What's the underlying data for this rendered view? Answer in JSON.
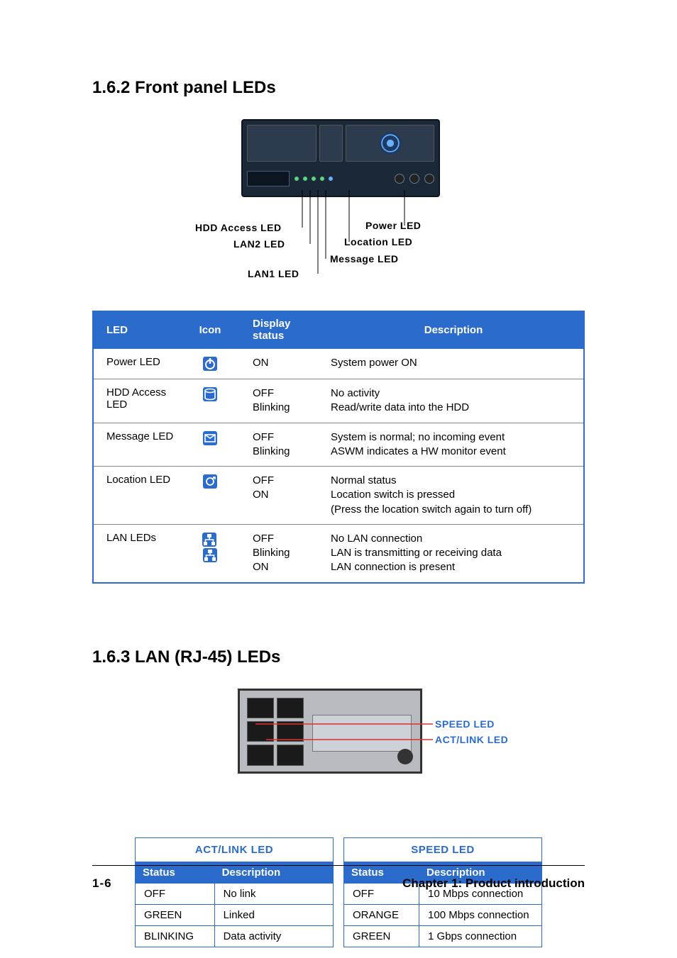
{
  "section1": {
    "heading": "1.6.2   Front panel LEDs",
    "labels": {
      "hdd": "HDD Access LED",
      "lan2": "LAN2 LED",
      "lan1": "LAN1 LED",
      "power": "Power LED",
      "location": "Location LED",
      "message": "Message LED"
    },
    "label_fontsize": 14,
    "label_color": "#000000",
    "device_bg": "#1a2838",
    "device_accent": "#6bb0ff",
    "dot_green": "#5ad67d"
  },
  "led_table": {
    "header_bg": "#2a6bcc",
    "header_fg": "#ffffff",
    "border_color": "#2a6bcc",
    "row_border": "#888888",
    "columns": [
      "LED",
      "Icon",
      "Display status",
      "Description"
    ],
    "rows": [
      {
        "led": "Power LED",
        "icon": "power-icon",
        "status": "ON",
        "desc": "System power ON"
      },
      {
        "led": "HDD Access LED",
        "icon": "hdd-icon",
        "status": "OFF\nBlinking",
        "desc": "No activity\nRead/write data into the HDD"
      },
      {
        "led": "Message LED",
        "icon": "message-icon",
        "status": "OFF\nBlinking",
        "desc": "System is normal; no incoming event\nASWM indicates a HW monitor event"
      },
      {
        "led": "Location LED",
        "icon": "location-icon",
        "status": "OFF\nON",
        "desc": "Normal status\nLocation switch is pressed\n(Press the location switch again to turn off)"
      },
      {
        "led": "LAN LEDs",
        "icon": "lan-icon",
        "status": "OFF\nBlinking\nON",
        "desc": "No LAN connection\nLAN is transmitting or receiving data\nLAN connection is present"
      }
    ]
  },
  "section2": {
    "heading": "1.6.3   LAN (RJ-45) LEDs",
    "labels": {
      "speed": "SPEED LED",
      "actlink": "ACT/LINK LED"
    },
    "label_color": "#2a6bcc",
    "line_color": "#e03030",
    "img_bg": "#b8bcc0"
  },
  "lan_table": {
    "header_bg": "#2a6bcc",
    "header_fg": "#ffffff",
    "border_color": "#2a6bcc",
    "group_left": "ACT/LINK LED",
    "group_right": "SPEED LED",
    "sub_cols": [
      "Status",
      "Description"
    ],
    "left_rows": [
      [
        "OFF",
        "No link"
      ],
      [
        "GREEN",
        "Linked"
      ],
      [
        "BLINKING",
        "Data activity"
      ]
    ],
    "right_rows": [
      [
        "OFF",
        "10 Mbps connection"
      ],
      [
        "ORANGE",
        "100 Mbps connection"
      ],
      [
        "GREEN",
        "1 Gbps connection"
      ]
    ]
  },
  "footer": {
    "page": "1-6",
    "chapter": "Chapter 1:  Product introduction"
  }
}
